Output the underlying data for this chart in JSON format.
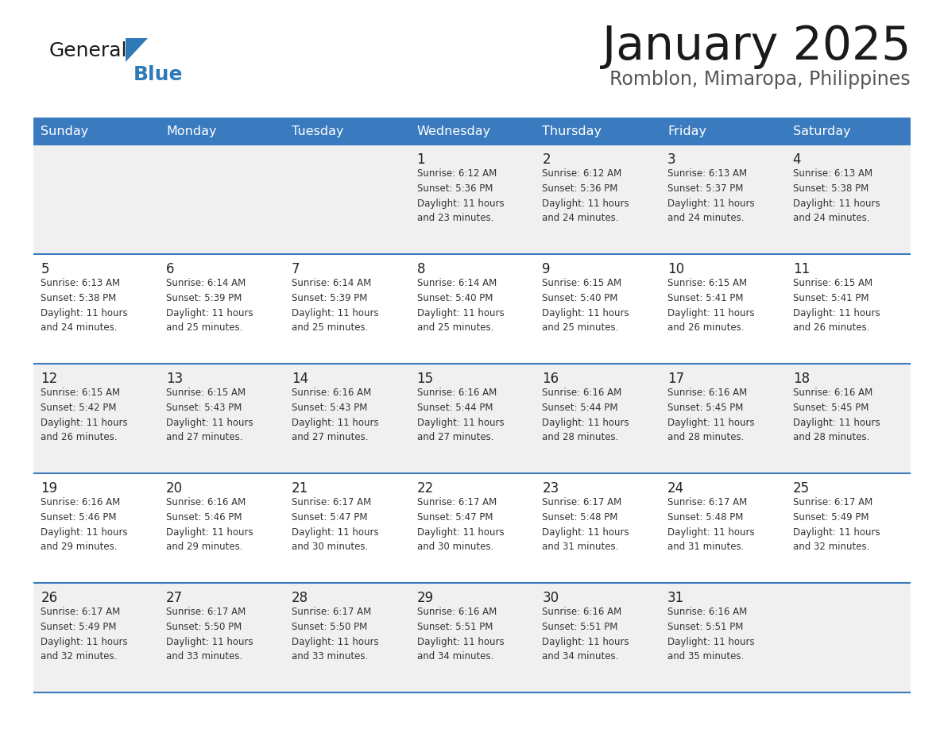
{
  "title": "January 2025",
  "subtitle": "Romblon, Mimaropa, Philippines",
  "days_of_week": [
    "Sunday",
    "Monday",
    "Tuesday",
    "Wednesday",
    "Thursday",
    "Friday",
    "Saturday"
  ],
  "header_bg": "#3a7abf",
  "header_text": "#ffffff",
  "row_bg_even": "#f0f0f0",
  "row_bg_odd": "#ffffff",
  "day_num_color": "#222222",
  "text_color": "#333333",
  "divider_color": "#3a7abf",
  "title_color": "#1a1a1a",
  "subtitle_color": "#555555",
  "logo_general_color": "#1a1a1a",
  "logo_blue_color": "#2e7ab8",
  "calendar": [
    [
      null,
      null,
      null,
      {
        "day": 1,
        "sunrise": "6:12 AM",
        "sunset": "5:36 PM",
        "daylight": "11 hours and 23 minutes."
      },
      {
        "day": 2,
        "sunrise": "6:12 AM",
        "sunset": "5:36 PM",
        "daylight": "11 hours and 24 minutes."
      },
      {
        "day": 3,
        "sunrise": "6:13 AM",
        "sunset": "5:37 PM",
        "daylight": "11 hours and 24 minutes."
      },
      {
        "day": 4,
        "sunrise": "6:13 AM",
        "sunset": "5:38 PM",
        "daylight": "11 hours and 24 minutes."
      }
    ],
    [
      {
        "day": 5,
        "sunrise": "6:13 AM",
        "sunset": "5:38 PM",
        "daylight": "11 hours and 24 minutes."
      },
      {
        "day": 6,
        "sunrise": "6:14 AM",
        "sunset": "5:39 PM",
        "daylight": "11 hours and 25 minutes."
      },
      {
        "day": 7,
        "sunrise": "6:14 AM",
        "sunset": "5:39 PM",
        "daylight": "11 hours and 25 minutes."
      },
      {
        "day": 8,
        "sunrise": "6:14 AM",
        "sunset": "5:40 PM",
        "daylight": "11 hours and 25 minutes."
      },
      {
        "day": 9,
        "sunrise": "6:15 AM",
        "sunset": "5:40 PM",
        "daylight": "11 hours and 25 minutes."
      },
      {
        "day": 10,
        "sunrise": "6:15 AM",
        "sunset": "5:41 PM",
        "daylight": "11 hours and 26 minutes."
      },
      {
        "day": 11,
        "sunrise": "6:15 AM",
        "sunset": "5:41 PM",
        "daylight": "11 hours and 26 minutes."
      }
    ],
    [
      {
        "day": 12,
        "sunrise": "6:15 AM",
        "sunset": "5:42 PM",
        "daylight": "11 hours and 26 minutes."
      },
      {
        "day": 13,
        "sunrise": "6:15 AM",
        "sunset": "5:43 PM",
        "daylight": "11 hours and 27 minutes."
      },
      {
        "day": 14,
        "sunrise": "6:16 AM",
        "sunset": "5:43 PM",
        "daylight": "11 hours and 27 minutes."
      },
      {
        "day": 15,
        "sunrise": "6:16 AM",
        "sunset": "5:44 PM",
        "daylight": "11 hours and 27 minutes."
      },
      {
        "day": 16,
        "sunrise": "6:16 AM",
        "sunset": "5:44 PM",
        "daylight": "11 hours and 28 minutes."
      },
      {
        "day": 17,
        "sunrise": "6:16 AM",
        "sunset": "5:45 PM",
        "daylight": "11 hours and 28 minutes."
      },
      {
        "day": 18,
        "sunrise": "6:16 AM",
        "sunset": "5:45 PM",
        "daylight": "11 hours and 28 minutes."
      }
    ],
    [
      {
        "day": 19,
        "sunrise": "6:16 AM",
        "sunset": "5:46 PM",
        "daylight": "11 hours and 29 minutes."
      },
      {
        "day": 20,
        "sunrise": "6:16 AM",
        "sunset": "5:46 PM",
        "daylight": "11 hours and 29 minutes."
      },
      {
        "day": 21,
        "sunrise": "6:17 AM",
        "sunset": "5:47 PM",
        "daylight": "11 hours and 30 minutes."
      },
      {
        "day": 22,
        "sunrise": "6:17 AM",
        "sunset": "5:47 PM",
        "daylight": "11 hours and 30 minutes."
      },
      {
        "day": 23,
        "sunrise": "6:17 AM",
        "sunset": "5:48 PM",
        "daylight": "11 hours and 31 minutes."
      },
      {
        "day": 24,
        "sunrise": "6:17 AM",
        "sunset": "5:48 PM",
        "daylight": "11 hours and 31 minutes."
      },
      {
        "day": 25,
        "sunrise": "6:17 AM",
        "sunset": "5:49 PM",
        "daylight": "11 hours and 32 minutes."
      }
    ],
    [
      {
        "day": 26,
        "sunrise": "6:17 AM",
        "sunset": "5:49 PM",
        "daylight": "11 hours and 32 minutes."
      },
      {
        "day": 27,
        "sunrise": "6:17 AM",
        "sunset": "5:50 PM",
        "daylight": "11 hours and 33 minutes."
      },
      {
        "day": 28,
        "sunrise": "6:17 AM",
        "sunset": "5:50 PM",
        "daylight": "11 hours and 33 minutes."
      },
      {
        "day": 29,
        "sunrise": "6:16 AM",
        "sunset": "5:51 PM",
        "daylight": "11 hours and 34 minutes."
      },
      {
        "day": 30,
        "sunrise": "6:16 AM",
        "sunset": "5:51 PM",
        "daylight": "11 hours and 34 minutes."
      },
      {
        "day": 31,
        "sunrise": "6:16 AM",
        "sunset": "5:51 PM",
        "daylight": "11 hours and 35 minutes."
      },
      null
    ]
  ]
}
